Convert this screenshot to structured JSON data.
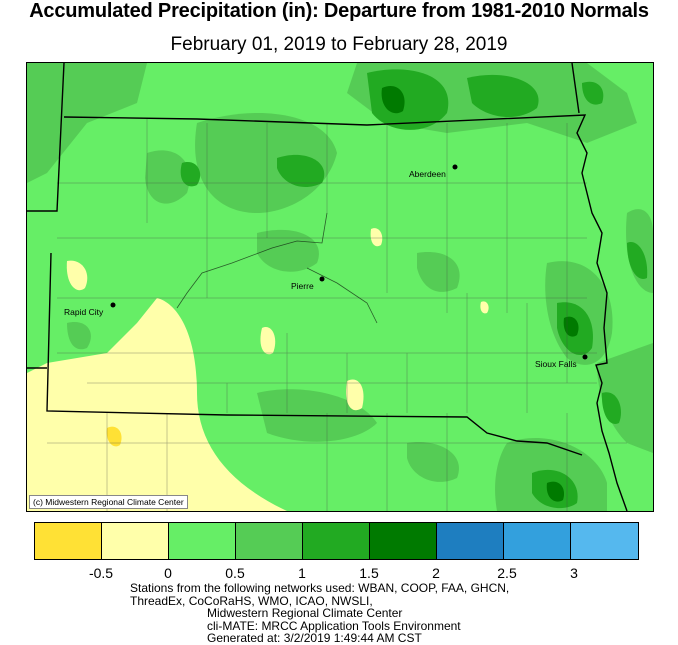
{
  "header": {
    "title": "Accumulated Precipitation (in): Departure from 1981-2010 Normals",
    "subtitle": "February 01, 2019 to February 28, 2019"
  },
  "map": {
    "credit": "(c) Midwestern Regional Climate Center",
    "cities": [
      {
        "name": "Aberdeen"
      },
      {
        "name": "Pierre"
      },
      {
        "name": "Rapid City"
      },
      {
        "name": "Sioux Falls"
      }
    ]
  },
  "legend": {
    "colors": [
      "#ffe135",
      "#ffffaa",
      "#66ee66",
      "#55cc55",
      "#22aa22",
      "#007a00",
      "#1e7ec0",
      "#33a0dd",
      "#55b8ee"
    ],
    "ticks": [
      "-0.5",
      "0",
      "0.5",
      "1",
      "1.5",
      "2",
      "2.5",
      "3"
    ]
  },
  "footer": {
    "line1": "Stations from the following networks used: WBAN, COOP, FAA, GHCN,",
    "line2": "ThreadEx, CoCoRaHS, WMO, ICAO, NWSLI,",
    "line3": "Midwestern Regional Climate Center",
    "line4": "cli-MATE: MRCC Application Tools Environment",
    "line5": "Generated at: 3/2/2019 1:49:44 AM CST"
  }
}
